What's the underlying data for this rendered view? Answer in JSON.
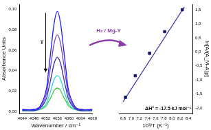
{
  "chart_data": [
    {
      "type": "line",
      "x_label": "Wavenumber / cm⁻¹",
      "y_label": "Absorbance Units",
      "xlim": [
        4043,
        4068
      ],
      "xticks": [
        4044,
        4048,
        4052,
        4056,
        4060,
        4064,
        4068
      ],
      "ylim": [
        -0.002,
        0.105
      ],
      "yticks": [
        {
          "value": 0,
          "label": "0,00"
        },
        {
          "value": 0.02,
          "label": "0,02"
        },
        {
          "value": 0.04,
          "label": "0,04"
        },
        {
          "value": 0.06,
          "label": "0,06"
        },
        {
          "value": 0.08,
          "label": "0,08"
        },
        {
          "value": 0.1,
          "label": "0,10"
        }
      ],
      "grid": false,
      "annotations": [
        "T"
      ],
      "x": [
        4044,
        4048,
        4050,
        4052,
        4053,
        4054,
        4055,
        4056,
        4057,
        4058,
        4059,
        4060,
        4062,
        4064,
        4068
      ],
      "series": [
        {
          "color": "#1a1aff",
          "values": [
            0.002,
            0.002,
            0.005,
            0.019,
            0.04,
            0.065,
            0.088,
            0.098,
            0.088,
            0.065,
            0.04,
            0.019,
            0.005,
            0.002,
            0.002
          ]
        },
        {
          "color": "#7b3fc0",
          "values": [
            0.002,
            0.002,
            0.004,
            0.015,
            0.031,
            0.05,
            0.068,
            0.075,
            0.068,
            0.05,
            0.031,
            0.015,
            0.004,
            0.002,
            0.002
          ]
        },
        {
          "color": "#2e2eb0",
          "values": [
            0.001,
            0.001,
            0.003,
            0.011,
            0.022,
            0.035,
            0.048,
            0.053,
            0.048,
            0.035,
            0.022,
            0.011,
            0.003,
            0.001,
            0.001
          ]
        },
        {
          "color": "#33d6e0",
          "values": [
            0.001,
            0.001,
            0.002,
            0.007,
            0.014,
            0.023,
            0.032,
            0.035,
            0.032,
            0.023,
            0.014,
            0.007,
            0.002,
            0.001,
            0.001
          ]
        },
        {
          "color": "#3ccc3c",
          "values": [
            0.001,
            0.001,
            0.002,
            0.005,
            0.01,
            0.015,
            0.021,
            0.023,
            0.021,
            0.015,
            0.01,
            0.005,
            0.002,
            0.001,
            0.001
          ]
        }
      ]
    },
    {
      "type": "scatter",
      "x_label": "10³/T (K⁻¹)",
      "y_label": "ln[A/(A_M-A)p]",
      "xlim": [
        6.7,
        8.5
      ],
      "xticks": [
        {
          "value": 6.8,
          "label": "6,8"
        },
        {
          "value": 7.0,
          "label": "7,0"
        },
        {
          "value": 7.2,
          "label": "7,2"
        },
        {
          "value": 7.4,
          "label": "7,4"
        },
        {
          "value": 7.6,
          "label": "7,6"
        },
        {
          "value": 7.8,
          "label": "7,8"
        },
        {
          "value": 8.0,
          "label": "8,0"
        },
        {
          "value": 8.2,
          "label": "8,2"
        },
        {
          "value": 8.4,
          "label": "8,4"
        }
      ],
      "ylim": [
        -2.2,
        1.7
      ],
      "yticks": [
        {
          "value": -2.0,
          "label": "-2,0"
        },
        {
          "value": -1.5,
          "label": "-1,5"
        },
        {
          "value": -1.0,
          "label": "-1,0"
        },
        {
          "value": -0.5,
          "label": "-0,5"
        },
        {
          "value": 0.0,
          "label": "0,0"
        },
        {
          "value": 0.5,
          "label": "0,5"
        },
        {
          "value": 1.0,
          "label": "1,0"
        },
        {
          "value": 1.5,
          "label": "1,5"
        }
      ],
      "grid": false,
      "annotations": [
        "ΔH° = -17.5 kJ mol⁻¹"
      ],
      "series": [
        {
          "type": "scatter",
          "marker": "square",
          "color": "#1a1a6e",
          "x": [
            6.86,
            7.1,
            7.45,
            7.82,
            8.25
          ],
          "values": [
            -1.62,
            -0.85,
            -0.05,
            0.72,
            1.5
          ]
        },
        {
          "type": "line",
          "color": "#3a3ab0",
          "x": [
            6.8,
            8.3
          ],
          "values": [
            -1.78,
            1.6
          ]
        }
      ]
    }
  ],
  "transition_label": "H₂ / Mg-Y"
}
